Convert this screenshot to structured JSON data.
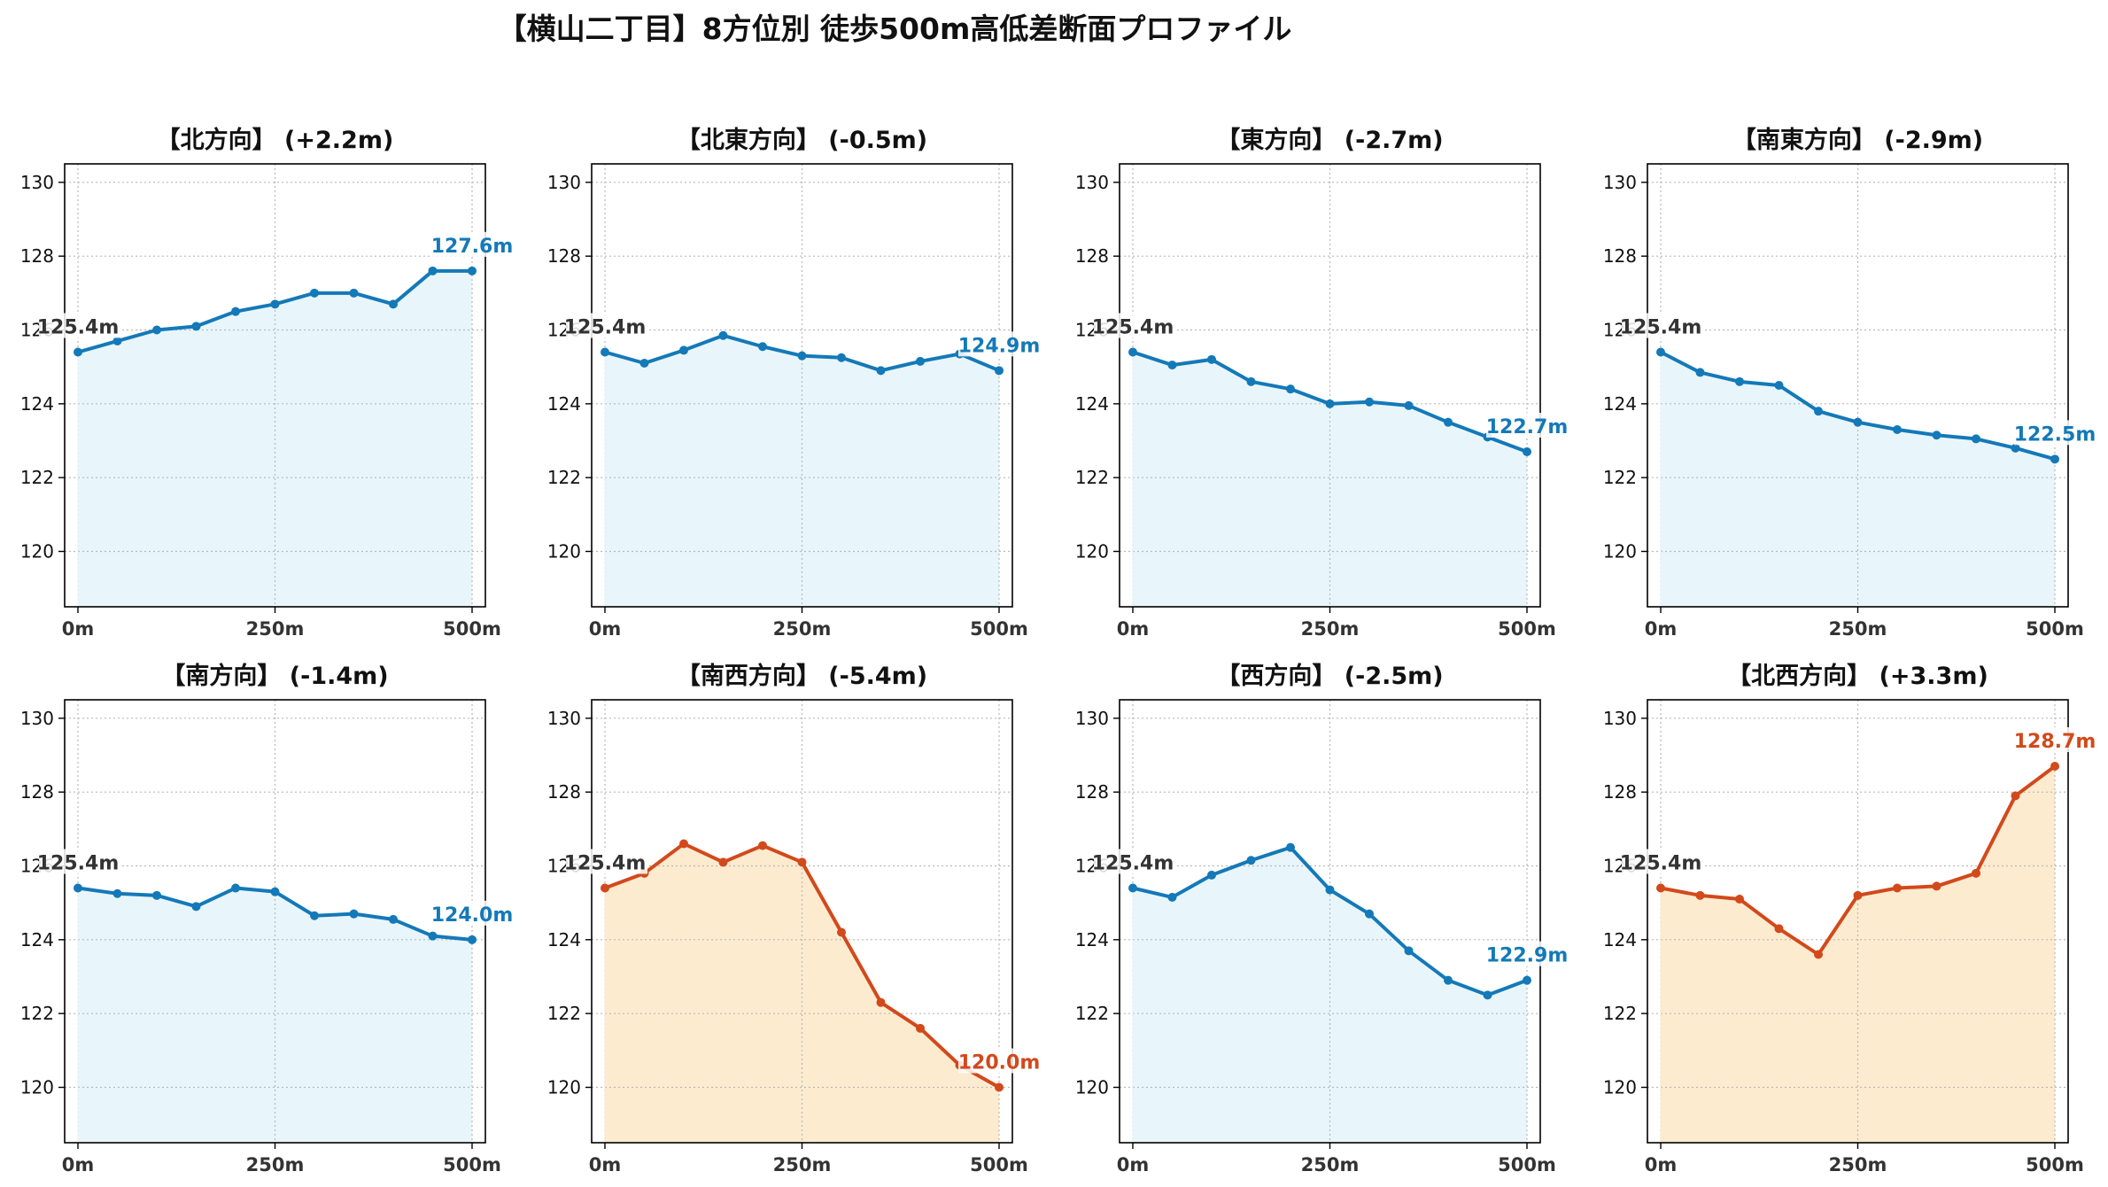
{
  "title": "【横山二丁目】8方位別 徒歩500m高低差断面プロファイル",
  "colors": {
    "down_line": "#1479b8",
    "down_fill": "#e8f6fc",
    "up_line": "#d2491c",
    "up_fill": "#fdebcf",
    "start_label": "#333333"
  },
  "chart_data": [
    {
      "type": "area",
      "title": "【北方向】 (+2.2m)",
      "x": [
        0,
        50,
        100,
        150,
        200,
        250,
        300,
        350,
        400,
        450,
        500
      ],
      "values": [
        125.4,
        125.7,
        126.0,
        126.1,
        126.5,
        126.7,
        127.0,
        127.0,
        126.7,
        127.6,
        127.6
      ],
      "xticks": [
        "0m",
        "250m",
        "500m"
      ],
      "yticks": [
        "120",
        "122",
        "124",
        "126",
        "128",
        "130"
      ],
      "ylim": [
        118.5,
        130.5
      ],
      "start_label": "125.4m",
      "end_label": "127.6m",
      "theme": "down",
      "grid": true
    },
    {
      "type": "area",
      "title": "【北東方向】 (-0.5m)",
      "x": [
        0,
        50,
        100,
        150,
        200,
        250,
        300,
        350,
        400,
        450,
        500
      ],
      "values": [
        125.4,
        125.1,
        125.45,
        125.85,
        125.55,
        125.3,
        125.25,
        124.9,
        125.15,
        125.35,
        124.9
      ],
      "xticks": [
        "0m",
        "250m",
        "500m"
      ],
      "yticks": [
        "120",
        "122",
        "124",
        "126",
        "128",
        "130"
      ],
      "ylim": [
        118.5,
        130.5
      ],
      "start_label": "125.4m",
      "end_label": "124.9m",
      "theme": "down",
      "grid": true
    },
    {
      "type": "area",
      "title": "【東方向】 (-2.7m)",
      "x": [
        0,
        50,
        100,
        150,
        200,
        250,
        300,
        350,
        400,
        450,
        500
      ],
      "values": [
        125.4,
        125.05,
        125.2,
        124.6,
        124.4,
        124.0,
        124.05,
        123.95,
        123.5,
        123.1,
        122.7
      ],
      "xticks": [
        "0m",
        "250m",
        "500m"
      ],
      "yticks": [
        "120",
        "122",
        "124",
        "126",
        "128",
        "130"
      ],
      "ylim": [
        118.5,
        130.5
      ],
      "start_label": "125.4m",
      "end_label": "122.7m",
      "theme": "down",
      "grid": true
    },
    {
      "type": "area",
      "title": "【南東方向】 (-2.9m)",
      "x": [
        0,
        50,
        100,
        150,
        200,
        250,
        300,
        350,
        400,
        450,
        500
      ],
      "values": [
        125.4,
        124.85,
        124.6,
        124.5,
        123.8,
        123.5,
        123.3,
        123.15,
        123.05,
        122.8,
        122.5
      ],
      "xticks": [
        "0m",
        "250m",
        "500m"
      ],
      "yticks": [
        "120",
        "122",
        "124",
        "126",
        "128",
        "130"
      ],
      "ylim": [
        118.5,
        130.5
      ],
      "start_label": "125.4m",
      "end_label": "122.5m",
      "theme": "down",
      "grid": true
    },
    {
      "type": "area",
      "title": "【南方向】 (-1.4m)",
      "x": [
        0,
        50,
        100,
        150,
        200,
        250,
        300,
        350,
        400,
        450,
        500
      ],
      "values": [
        125.4,
        125.25,
        125.2,
        124.9,
        125.4,
        125.3,
        124.65,
        124.7,
        124.55,
        124.1,
        124.0
      ],
      "xticks": [
        "0m",
        "250m",
        "500m"
      ],
      "yticks": [
        "120",
        "122",
        "124",
        "126",
        "128",
        "130"
      ],
      "ylim": [
        118.5,
        130.5
      ],
      "start_label": "125.4m",
      "end_label": "124.0m",
      "theme": "down",
      "grid": true
    },
    {
      "type": "area",
      "title": "【南西方向】 (-5.4m)",
      "x": [
        0,
        50,
        100,
        150,
        200,
        250,
        300,
        350,
        400,
        450,
        500
      ],
      "values": [
        125.4,
        125.8,
        126.6,
        126.1,
        126.55,
        126.1,
        124.2,
        122.3,
        121.6,
        120.6,
        120.0
      ],
      "xticks": [
        "0m",
        "250m",
        "500m"
      ],
      "yticks": [
        "120",
        "122",
        "124",
        "126",
        "128",
        "130"
      ],
      "ylim": [
        118.5,
        130.5
      ],
      "start_label": "125.4m",
      "end_label": "120.0m",
      "theme": "up",
      "grid": true
    },
    {
      "type": "area",
      "title": "【西方向】 (-2.5m)",
      "x": [
        0,
        50,
        100,
        150,
        200,
        250,
        300,
        350,
        400,
        450,
        500
      ],
      "values": [
        125.4,
        125.15,
        125.75,
        126.15,
        126.5,
        125.35,
        124.7,
        123.7,
        122.9,
        122.5,
        122.9
      ],
      "xticks": [
        "0m",
        "250m",
        "500m"
      ],
      "yticks": [
        "120",
        "122",
        "124",
        "126",
        "128",
        "130"
      ],
      "ylim": [
        118.5,
        130.5
      ],
      "start_label": "125.4m",
      "end_label": "122.9m",
      "theme": "down",
      "grid": true
    },
    {
      "type": "area",
      "title": "【北西方向】 (+3.3m)",
      "x": [
        0,
        50,
        100,
        150,
        200,
        250,
        300,
        350,
        400,
        450,
        500
      ],
      "values": [
        125.4,
        125.2,
        125.1,
        124.3,
        123.6,
        125.2,
        125.4,
        125.45,
        125.8,
        127.9,
        128.7
      ],
      "xticks": [
        "0m",
        "250m",
        "500m"
      ],
      "yticks": [
        "120",
        "122",
        "124",
        "126",
        "128",
        "130"
      ],
      "ylim": [
        118.5,
        130.5
      ],
      "start_label": "125.4m",
      "end_label": "128.7m",
      "theme": "up",
      "grid": true
    }
  ]
}
